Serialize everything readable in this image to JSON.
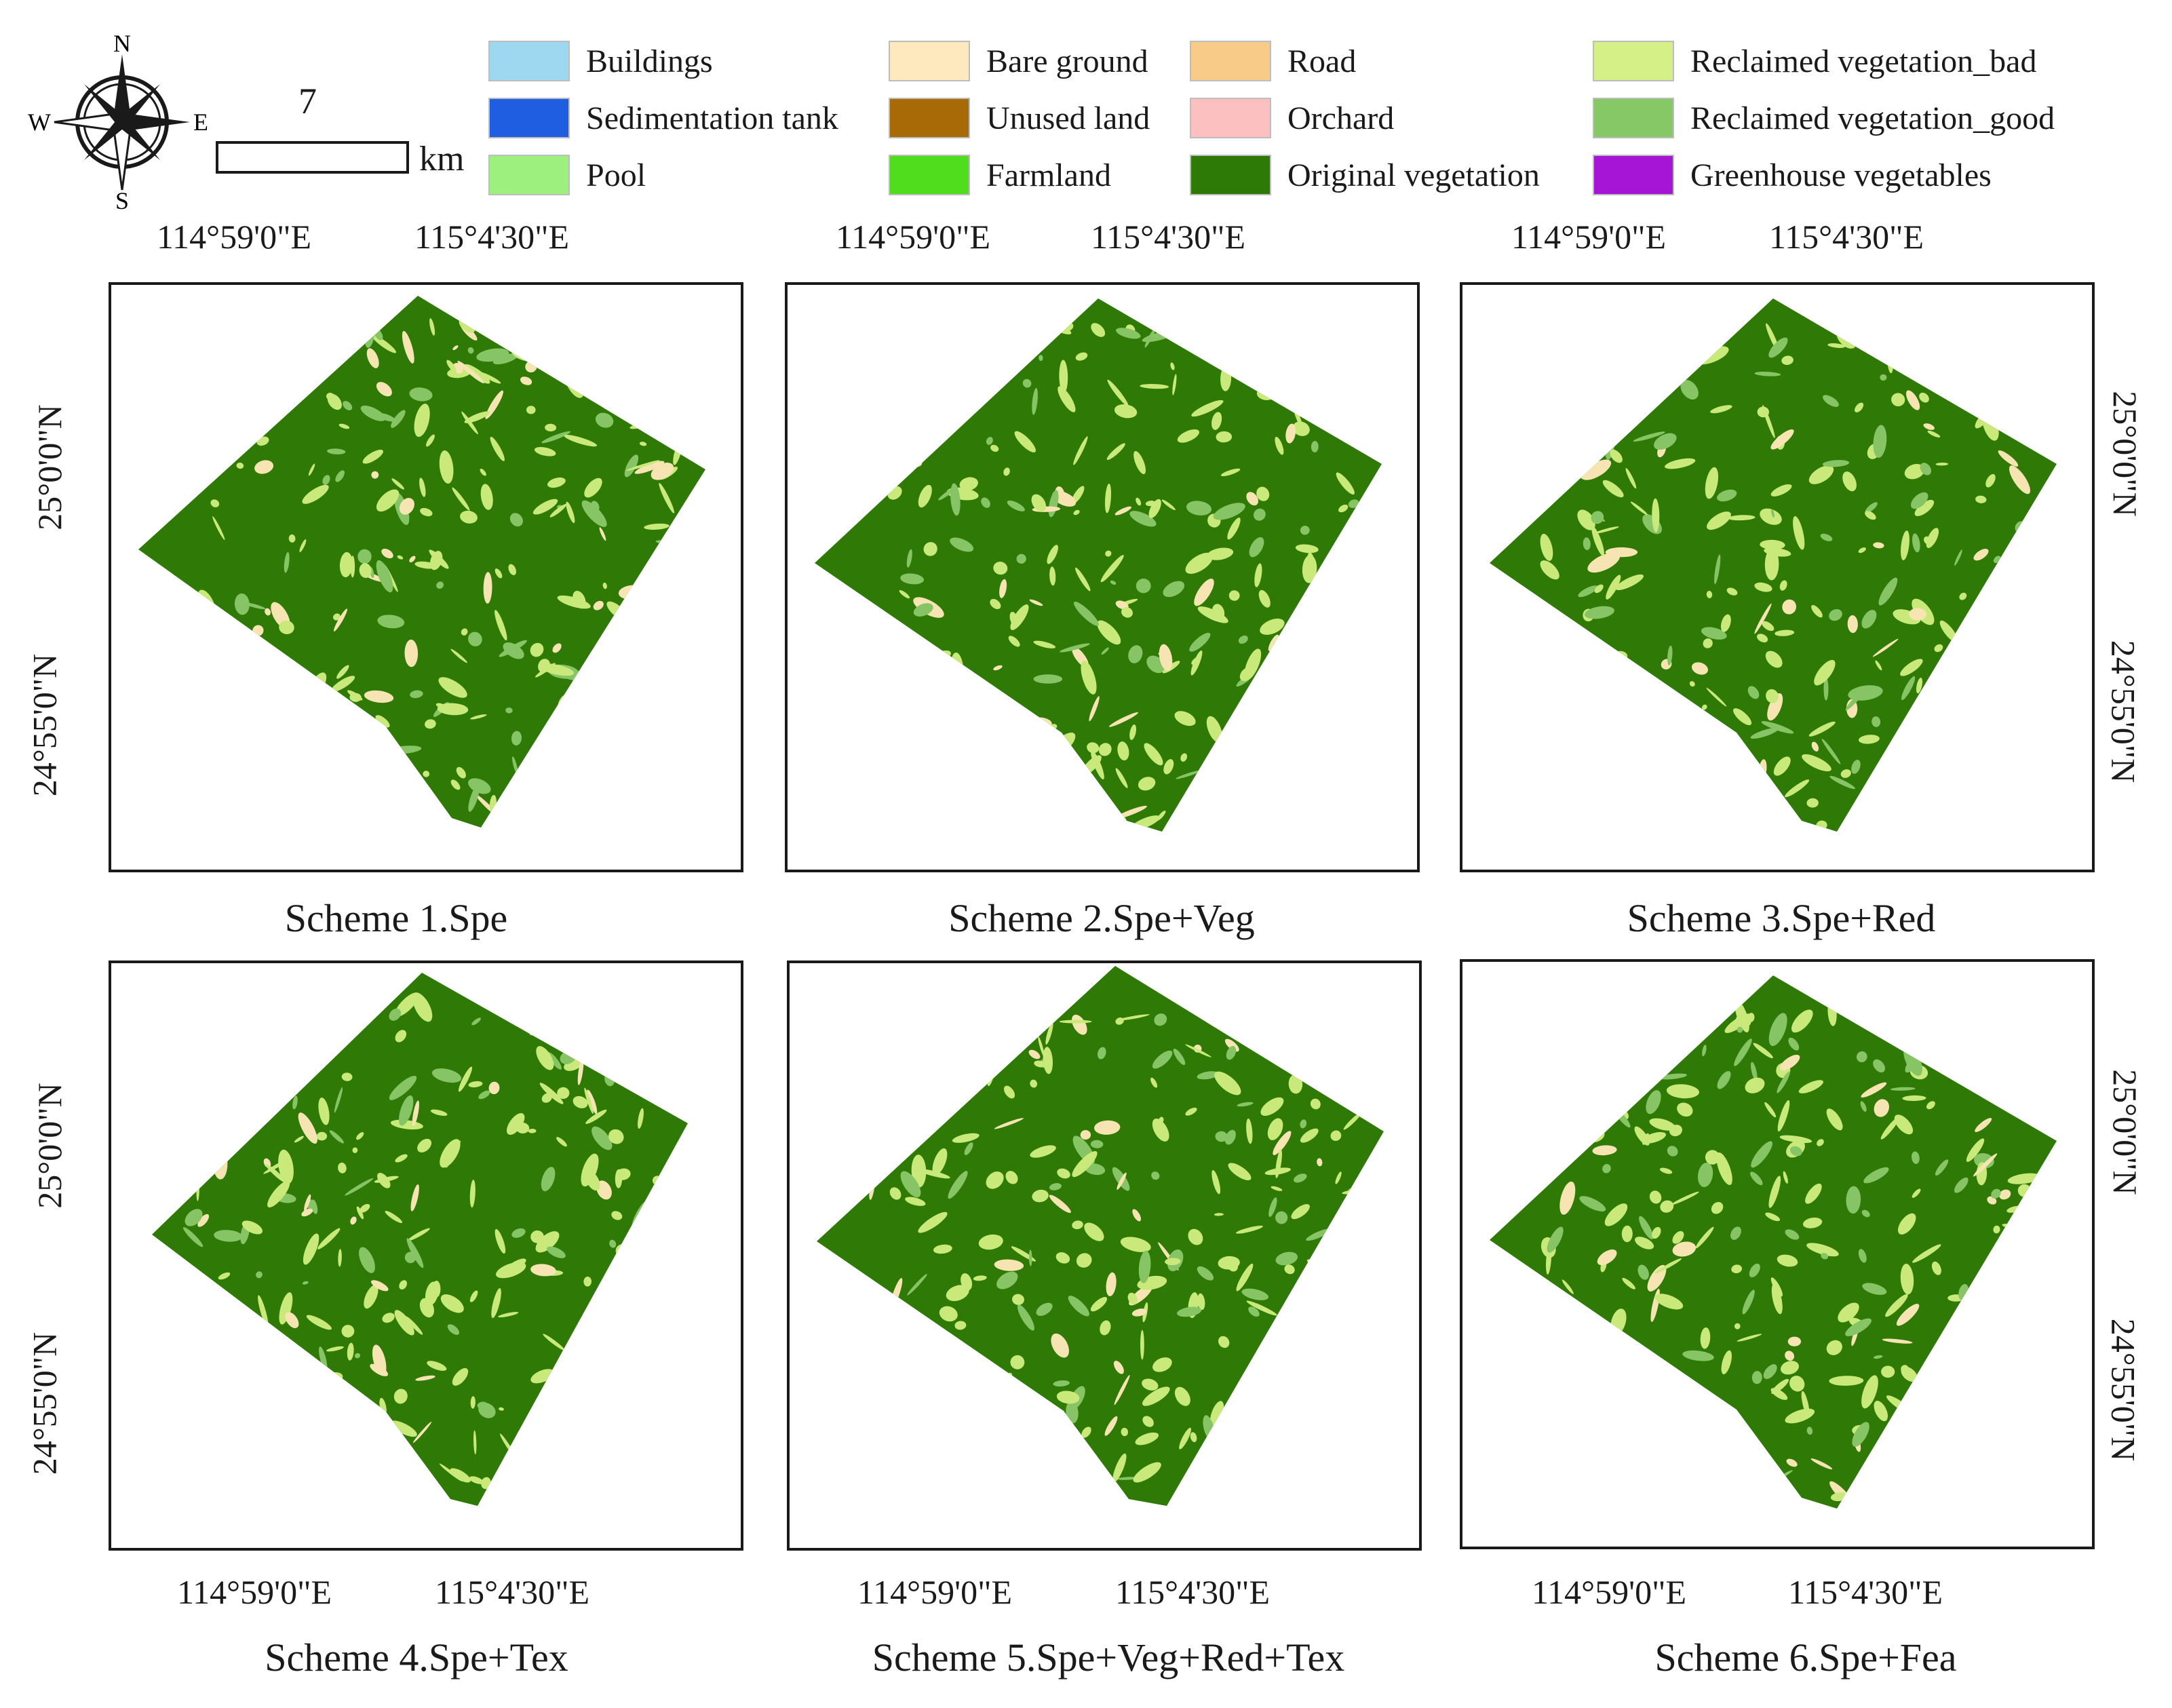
{
  "figure": {
    "compass": {
      "north": "N",
      "south": "S",
      "east": "E",
      "west": "W"
    },
    "scale_bar": {
      "value": "7",
      "unit": "km"
    },
    "colors": {
      "original_vegetation": "#2f7a06",
      "reclaimed_bad": "#c9e97a",
      "reclaimed_good": "#86c465",
      "bare_ground": "#f7e4b3"
    }
  },
  "legend": [
    {
      "label": "Buildings",
      "color": "#9dd8f0",
      "icon": "buildings-swatch"
    },
    {
      "label": "Sedimentation tank",
      "color": "#1f5ee0",
      "icon": "sedimentation-tank-swatch"
    },
    {
      "label": "Pool",
      "color": "#9ef07e",
      "icon": "pool-swatch"
    },
    {
      "label": "Bare ground",
      "color": "#fde9bd",
      "icon": "bare-ground-swatch"
    },
    {
      "label": "Unused land",
      "color": "#a86a06",
      "icon": "unused-land-swatch"
    },
    {
      "label": "Farmland",
      "color": "#4fdd1e",
      "icon": "farmland-swatch"
    },
    {
      "label": "Road",
      "color": "#f8cc88",
      "icon": "road-swatch"
    },
    {
      "label": "Orchard",
      "color": "#fdc0c0",
      "icon": "orchard-swatch"
    },
    {
      "label": "Original vegetation",
      "color": "#2e7a06",
      "icon": "original-vegetation-swatch"
    },
    {
      "label": "Reclaimed vegetation_bad",
      "color": "#d4f086",
      "icon": "reclaimed-bad-swatch"
    },
    {
      "label": "Reclaimed vegetation_good",
      "color": "#86c766",
      "icon": "reclaimed-good-swatch"
    },
    {
      "label": "Greenhouse vegetables",
      "color": "#a614d6",
      "icon": "greenhouse-swatch"
    }
  ],
  "panels": [
    {
      "caption": "Scheme 1.Spe",
      "lon_labels": [
        "114°59'0\"E",
        "115°4'30\"E"
      ],
      "lat_labels": [
        "25°0'0\"N",
        "24°55'0\"N"
      ]
    },
    {
      "caption": "Scheme 2.Spe+Veg",
      "lon_labels": [
        "114°59'0\"E",
        "115°4'30\"E"
      ],
      "lat_labels": []
    },
    {
      "caption": "Scheme 3.Spe+Red",
      "lon_labels": [
        "114°59'0\"E",
        "115°4'30\"E"
      ],
      "lat_labels": [
        "25°0'0\"N",
        "24°55'0\"N"
      ]
    },
    {
      "caption": "Scheme 4.Spe+Tex",
      "lon_labels": [
        "114°59'0\"E",
        "115°4'30\"E"
      ],
      "lat_labels": [
        "25°0'0\"N",
        "24°55'0\"N"
      ]
    },
    {
      "caption": "Scheme 5.Spe+Veg+Red+Tex",
      "lon_labels": [
        "114°59'0\"E",
        "115°4'30\"E"
      ],
      "lat_labels": []
    },
    {
      "caption": "Scheme 6.Spe+Fea",
      "lon_labels": [
        "114°59'0\"E",
        "115°4'30\"E"
      ],
      "lat_labels": [
        "25°0'0\"N",
        "24°55'0\"N"
      ]
    }
  ]
}
